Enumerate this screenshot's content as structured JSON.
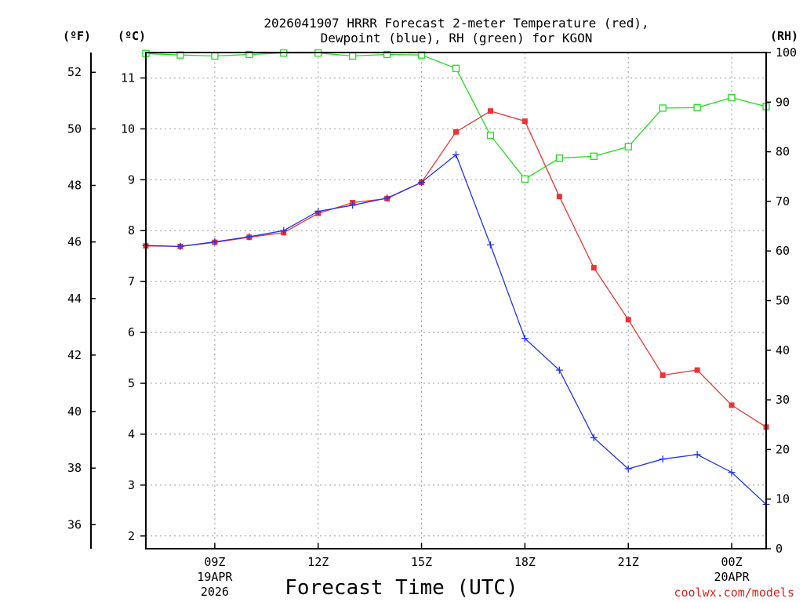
{
  "title_line1": "2026041907 HRRR Forecast 2-meter Temperature (red),",
  "title_line2": "Dewpoint (blue), RH (green) for KGON",
  "unit_f": "(ºF)",
  "unit_c": "(ºC)",
  "unit_rh": "(RH)",
  "xlabel": "Forecast Time (UTC)",
  "credit": "coolwx.com/models",
  "colors": {
    "temperature": "#ee3333",
    "dewpoint": "#2233ee",
    "rh": "#22dd22",
    "credit": "#dd2222"
  },
  "chart_data": {
    "type": "line",
    "title": "2026041907 HRRR Forecast 2-meter Temperature (red), Dewpoint (blue), RH (green) for KGON",
    "xlabel": "Forecast Time (UTC)",
    "x_hours": [
      7,
      8,
      9,
      10,
      11,
      12,
      13,
      14,
      15,
      16,
      17,
      18,
      19,
      20,
      21,
      22,
      23,
      24,
      25
    ],
    "xlim": [
      7,
      25
    ],
    "x_ticks": [
      {
        "hour": 9,
        "lines": [
          "09Z",
          "19APR",
          "2026"
        ]
      },
      {
        "hour": 12,
        "lines": [
          "12Z"
        ]
      },
      {
        "hour": 15,
        "lines": [
          "15Z"
        ]
      },
      {
        "hour": 18,
        "lines": [
          "18Z"
        ]
      },
      {
        "hour": 21,
        "lines": [
          "21Z"
        ]
      },
      {
        "hour": 24,
        "lines": [
          "00Z",
          "20APR"
        ]
      }
    ],
    "left_axis_c": {
      "label": "(ºC)",
      "ylim": [
        1.75,
        11.5
      ],
      "ticks": [
        2,
        3,
        4,
        5,
        6,
        7,
        8,
        9,
        10,
        11
      ]
    },
    "left_axis_f": {
      "label": "(ºF)",
      "ticks": [
        36,
        38,
        40,
        42,
        44,
        46,
        48,
        50,
        52
      ]
    },
    "right_axis_rh": {
      "label": "(RH)",
      "ylim": [
        0,
        100
      ],
      "ticks": [
        0,
        10,
        20,
        30,
        40,
        50,
        60,
        70,
        80,
        90,
        100
      ]
    },
    "series": [
      {
        "name": "Temperature",
        "axis": "c",
        "marker": "filled-square",
        "values": [
          7.7,
          7.69,
          7.77,
          7.87,
          7.96,
          8.34,
          8.55,
          8.63,
          8.95,
          9.94,
          10.35,
          10.15,
          8.67,
          7.27,
          6.25,
          5.16,
          5.26,
          4.57,
          4.14
        ]
      },
      {
        "name": "Dewpoint",
        "axis": "c",
        "marker": "plus",
        "values": [
          7.71,
          7.69,
          7.78,
          7.88,
          8.0,
          8.38,
          8.5,
          8.64,
          8.95,
          9.49,
          7.72,
          5.88,
          5.26,
          3.93,
          3.32,
          3.51,
          3.6,
          3.25,
          2.62
        ]
      },
      {
        "name": "RH",
        "axis": "rh",
        "marker": "open-square",
        "values": [
          99.8,
          99.5,
          99.3,
          99.6,
          99.9,
          99.9,
          99.3,
          99.6,
          99.5,
          96.8,
          83.3,
          74.5,
          78.7,
          79.1,
          81.0,
          88.8,
          88.9,
          90.9,
          89.1
        ]
      }
    ]
  }
}
